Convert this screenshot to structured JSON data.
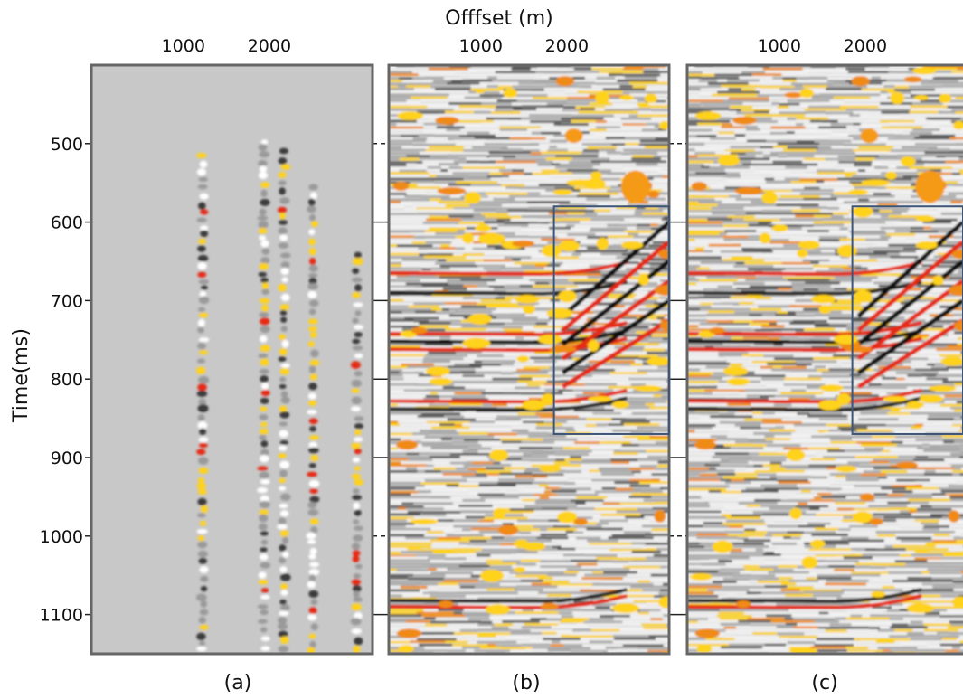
{
  "figure": {
    "x_axis_title": "Offfset (m)",
    "y_axis_title": "Time(ms)",
    "x_tick_values": [
      1000,
      2000
    ],
    "x_tick_labels": [
      "1000",
      "2000"
    ],
    "y_tick_values": [
      500,
      600,
      700,
      800,
      900,
      1000,
      1100
    ],
    "y_tick_labels": [
      "500",
      "600",
      "700",
      "800",
      "900",
      "1000",
      "1100"
    ],
    "time_range_ms": [
      400,
      1150
    ],
    "offset_range_m": [
      -70,
      3200
    ]
  },
  "panels": [
    {
      "id": "a",
      "caption": "(a)",
      "style": "sparse-traces"
    },
    {
      "id": "b",
      "caption": "(b)",
      "style": "dense-section",
      "box_offset_m": [
        1850,
        3200
      ],
      "box_time_ms": [
        580,
        870
      ]
    },
    {
      "id": "c",
      "caption": "(c)",
      "style": "dense-section",
      "box_offset_m": [
        1850,
        3200
      ],
      "box_time_ms": [
        580,
        870
      ]
    }
  ],
  "colors": {
    "panel_a_background": "#c8c8c8",
    "panel_frame": "#666666",
    "highlight_box": "#3d5577",
    "positive_amplitude": "#ffd21e",
    "strong_amplitude": "#e52a14",
    "negative_amplitude": "#1a1a1a"
  }
}
